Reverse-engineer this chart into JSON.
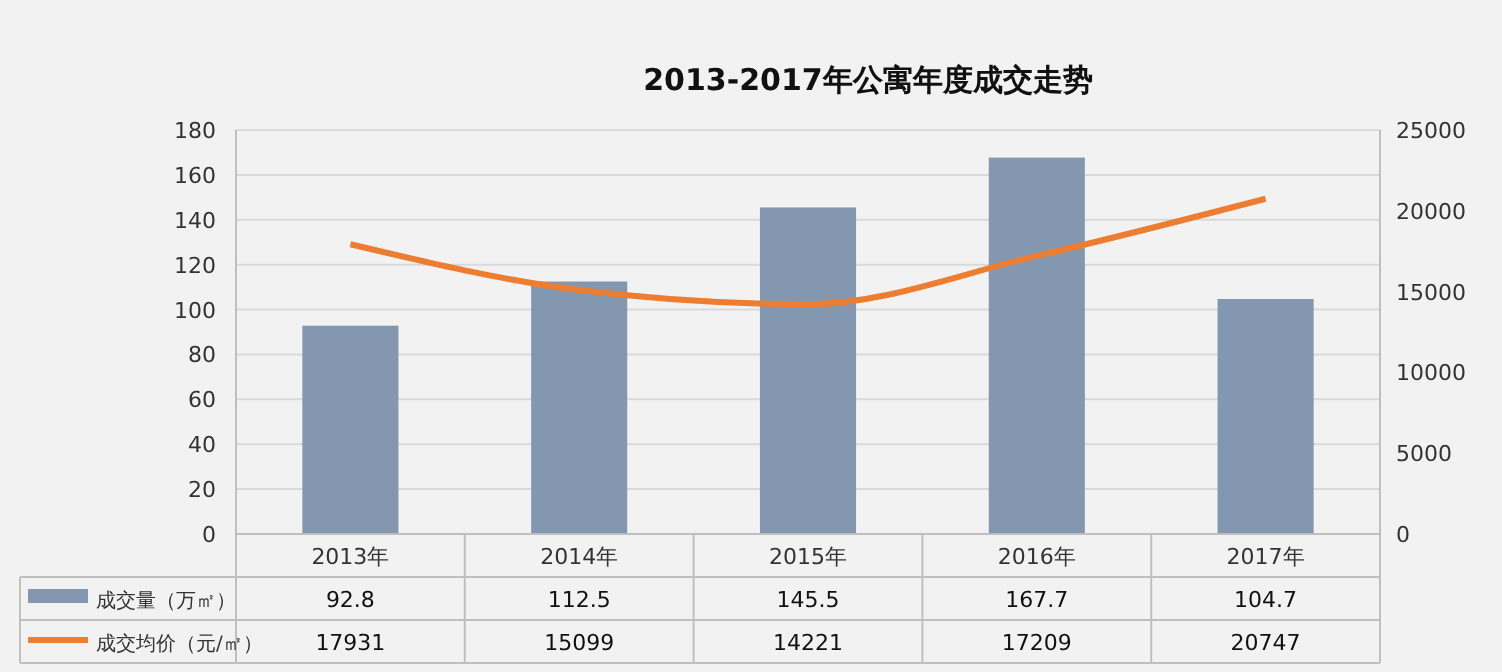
{
  "chart_data": {
    "type": "bar",
    "title": "2013-2017年公寓年度成交走势",
    "categories": [
      "2013年",
      "2014年",
      "2015年",
      "2016年",
      "2017年"
    ],
    "series": [
      {
        "name": "成交量（万㎡）",
        "color": "#8497b0",
        "values": [
          92.8,
          112.5,
          145.5,
          167.7,
          104.7
        ]
      },
      {
        "name": "成交均价（元/㎡）",
        "type": "line",
        "axis": "y2",
        "color": "#ed7d31",
        "values": [
          17931,
          15099,
          14221,
          17209,
          20747
        ]
      }
    ],
    "ylim": [
      0,
      180
    ],
    "yticks": [
      0,
      20,
      40,
      60,
      80,
      100,
      120,
      140,
      160,
      180
    ],
    "y2lim": [
      0,
      25000
    ],
    "y2ticks": [
      0,
      5000,
      10000,
      15000,
      20000,
      25000
    ],
    "grid": "y",
    "legend": "bottom",
    "data_labels": true,
    "marker": "none",
    "line_style": "solid"
  }
}
